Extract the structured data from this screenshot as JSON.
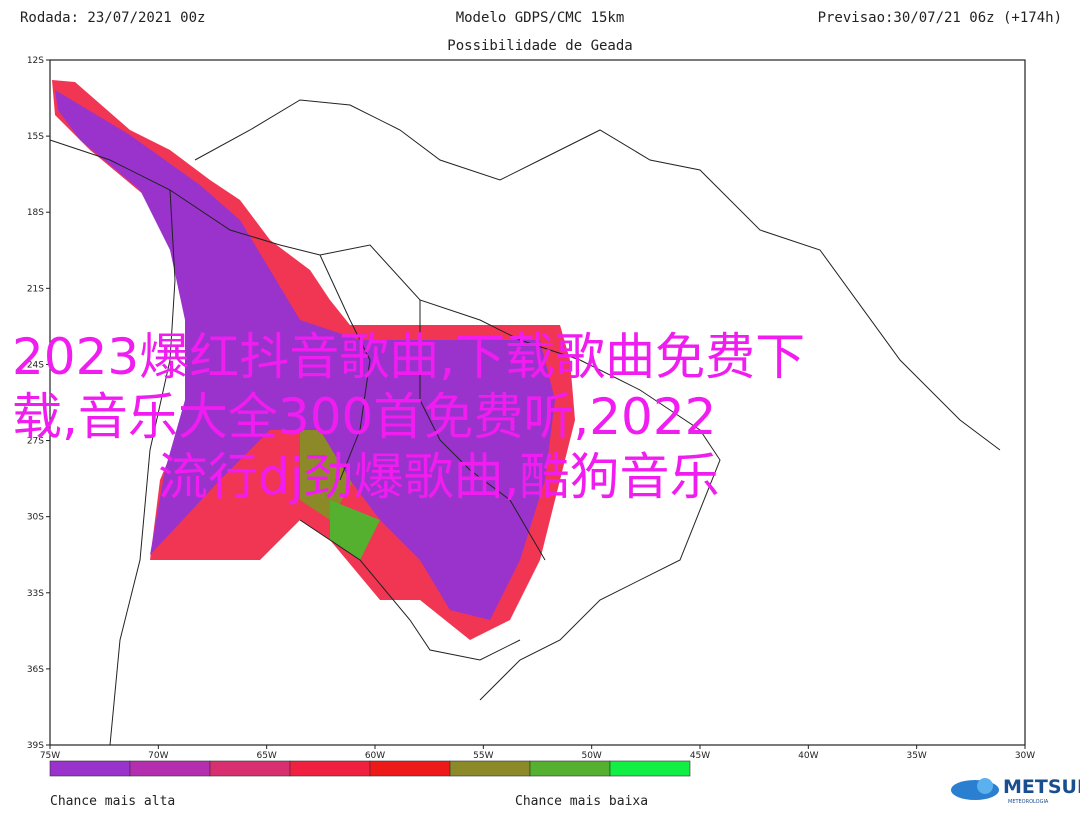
{
  "header": {
    "left": "Rodada: 23/07/2021 00z",
    "center": "Modelo GDPS/CMC 15km",
    "right": "Previsao:30/07/21 06z (+174h)",
    "subtitle": "Possibilidade de Geada"
  },
  "map": {
    "lat_labels": [
      "12S",
      "15S",
      "18S",
      "21S",
      "24S",
      "27S",
      "30S",
      "33S",
      "36S",
      "39S"
    ],
    "lon_labels": [
      "75W",
      "70W",
      "65W",
      "60W",
      "55W",
      "50W",
      "45W",
      "40W",
      "35W",
      "30W"
    ]
  },
  "colorbar": {
    "colors": [
      "#9933cc",
      "#b42fb0",
      "#d82f70",
      "#f02040",
      "#ee1a1a",
      "#8c8a28",
      "#55b030",
      "#11ee44"
    ],
    "high_label": "Chance mais alta",
    "low_label": "Chance mais baixa"
  },
  "logo": {
    "name": "METSUL",
    "tagline": "METEOROLOGIA"
  },
  "overlay": {
    "lines": [
      "2023爆红抖音歌曲,下载歌曲免费下",
      "载,音乐大全300首免费听,2022",
      "流行dj劲爆歌曲,酷狗音乐"
    ]
  }
}
